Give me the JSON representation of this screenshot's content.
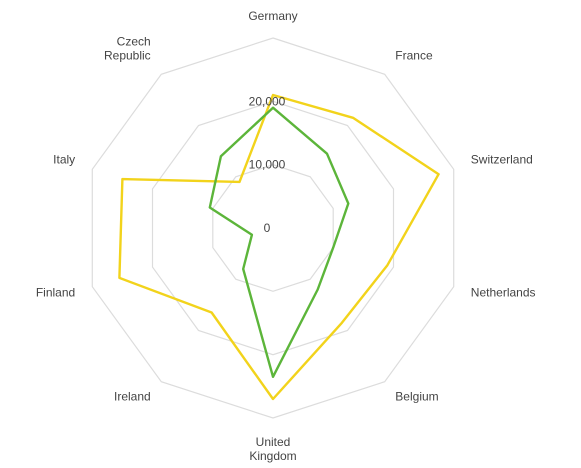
{
  "chart_data": {
    "type": "radar",
    "categories": [
      "Germany",
      "France",
      "Switzerland",
      "Netherlands",
      "Belgium",
      "United Kingdom",
      "Ireland",
      "Finland",
      "Italy",
      "Czech Republic"
    ],
    "radial_ticks": [
      0,
      10000,
      20000
    ],
    "radial_tick_labels": [
      "0",
      "10,000",
      "20,000"
    ],
    "rmax": 30000,
    "series": [
      {
        "color": "#f2d31b",
        "values": [
          21000,
          21500,
          27500,
          19000,
          18500,
          27000,
          16500,
          25500,
          25000,
          9000
        ]
      },
      {
        "color": "#5cb53a",
        "values": [
          19000,
          14500,
          12500,
          10000,
          12000,
          23500,
          8000,
          3500,
          10500,
          14000
        ]
      }
    ],
    "grid": true
  }
}
